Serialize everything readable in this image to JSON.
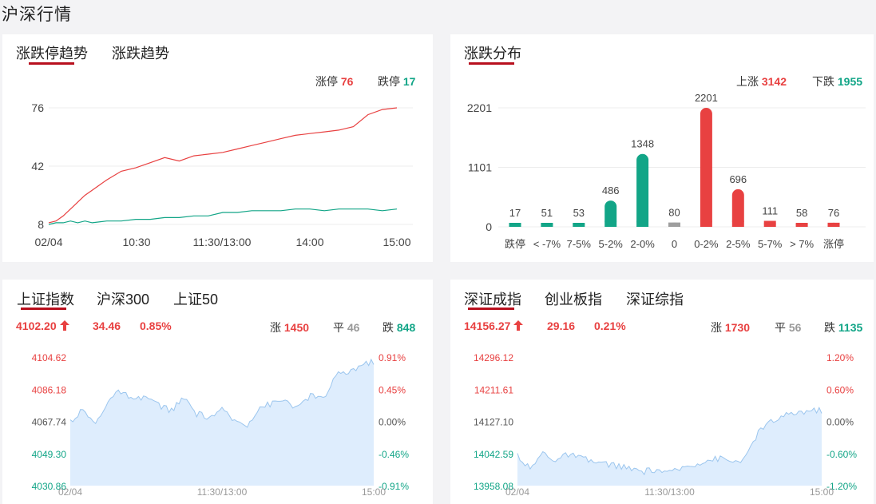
{
  "page_title": "沪深行情",
  "colors": {
    "up": "#e84141",
    "down": "#12a587",
    "flat": "#999999",
    "accent": "#b8101e"
  },
  "limit_trend": {
    "tabs": [
      "涨跌停趋势",
      "涨跌趋势"
    ],
    "active_tab": 0,
    "up_label": "涨停",
    "up_value": "76",
    "down_label": "跌停",
    "down_value": "17",
    "y_ticks": [
      "76",
      "42",
      "8"
    ],
    "x_ticks": [
      "02/04",
      "10:30",
      "11:30/13:00",
      "14:00",
      "15:00"
    ],
    "chart_data": {
      "type": "line",
      "title": "",
      "ylim": [
        8,
        76
      ],
      "x": [
        0,
        5,
        10,
        15,
        20,
        25,
        30,
        40,
        50,
        60,
        70,
        80,
        90,
        100,
        110,
        120,
        130,
        140,
        150,
        160,
        170,
        180,
        190,
        200,
        210,
        220,
        230,
        240
      ],
      "series": [
        {
          "name": "涨停",
          "values": [
            9,
            10,
            13,
            17,
            21,
            25,
            28,
            34,
            39,
            41,
            44,
            47,
            45,
            48,
            49,
            50,
            52,
            54,
            56,
            58,
            60,
            61,
            62,
            63,
            65,
            72,
            75,
            76
          ]
        },
        {
          "name": "跌停",
          "values": [
            8,
            9,
            9,
            10,
            9,
            10,
            9,
            10,
            10,
            11,
            11,
            12,
            12,
            13,
            13,
            15,
            15,
            16,
            16,
            16,
            17,
            17,
            16,
            17,
            17,
            17,
            16,
            17
          ]
        }
      ]
    }
  },
  "distribution": {
    "title": "涨跌分布",
    "up_label": "上涨",
    "up_value": "3142",
    "down_label": "下跌",
    "down_value": "1955",
    "y_ticks": [
      "2201",
      "1101",
      "0"
    ],
    "chart_data": {
      "type": "bar",
      "categories": [
        "跌停",
        "< -7%",
        "7-5%",
        "5-2%",
        "2-0%",
        "0",
        "0-2%",
        "2-5%",
        "5-7%",
        "> 7%",
        "涨停"
      ],
      "values": [
        17,
        51,
        53,
        486,
        1348,
        80,
        2201,
        696,
        111,
        58,
        76
      ],
      "groups": [
        "down",
        "down",
        "down",
        "down",
        "down",
        "flat",
        "up",
        "up",
        "up",
        "up",
        "up"
      ],
      "ylim": [
        0,
        2201
      ]
    }
  },
  "index_sh": {
    "tabs": [
      "上证指数",
      "沪深300",
      "上证50"
    ],
    "active_tab": 0,
    "price": "4102.20",
    "change": "34.46",
    "change_pct": "0.85%",
    "up_label": "涨",
    "up_value": "1450",
    "flat_label": "平",
    "flat_value": "46",
    "down_label": "跌",
    "down_value": "848",
    "left_ticks": [
      "4104.62",
      "4086.18",
      "4067.74",
      "4049.30",
      "4030.86"
    ],
    "right_ticks": [
      "0.91%",
      "0.45%",
      "0.00%",
      "-0.46%",
      "-0.91%"
    ],
    "x_ticks": [
      "02/04",
      "11:30/13:00",
      "15:00"
    ],
    "chart_data": {
      "type": "area",
      "ylim": [
        4030.86,
        4104.62
      ],
      "x": [
        0,
        10,
        20,
        30,
        40,
        50,
        60,
        70,
        80,
        90,
        100,
        110,
        120,
        130,
        140,
        150,
        160,
        170,
        180,
        190,
        200,
        210,
        220,
        230,
        240
      ],
      "values": [
        4068,
        4074,
        4066,
        4080,
        4085,
        4079,
        4082,
        4077,
        4074,
        4081,
        4072,
        4070,
        4074,
        4068,
        4066,
        4076,
        4078,
        4080,
        4075,
        4083,
        4080,
        4094,
        4096,
        4100,
        4102
      ]
    }
  },
  "index_sz": {
    "tabs": [
      "深证成指",
      "创业板指",
      "深证综指"
    ],
    "active_tab": 0,
    "price": "14156.27",
    "change": "29.16",
    "change_pct": "0.21%",
    "up_label": "涨",
    "up_value": "1730",
    "flat_label": "平",
    "flat_value": "56",
    "down_label": "跌",
    "down_value": "1135",
    "left_ticks": [
      "14296.12",
      "14211.61",
      "14127.10",
      "14042.59",
      "13958.08"
    ],
    "right_ticks": [
      "1.20%",
      "0.60%",
      "0.00%",
      "-0.60%",
      "-1.20%"
    ],
    "x_ticks": [
      "02/04",
      "11:30/13:00",
      "15:00"
    ],
    "chart_data": {
      "type": "area",
      "ylim": [
        13958.08,
        14296.12
      ],
      "x": [
        0,
        10,
        20,
        30,
        40,
        50,
        60,
        70,
        80,
        90,
        100,
        110,
        120,
        130,
        140,
        150,
        160,
        170,
        180,
        190,
        200,
        210,
        220,
        230,
        240
      ],
      "values": [
        14040,
        14000,
        14045,
        14025,
        14040,
        14030,
        14020,
        14015,
        14010,
        14000,
        13995,
        14000,
        13990,
        14005,
        14015,
        14025,
        14030,
        14020,
        14030,
        14100,
        14125,
        14140,
        14150,
        14155,
        14156
      ]
    }
  }
}
